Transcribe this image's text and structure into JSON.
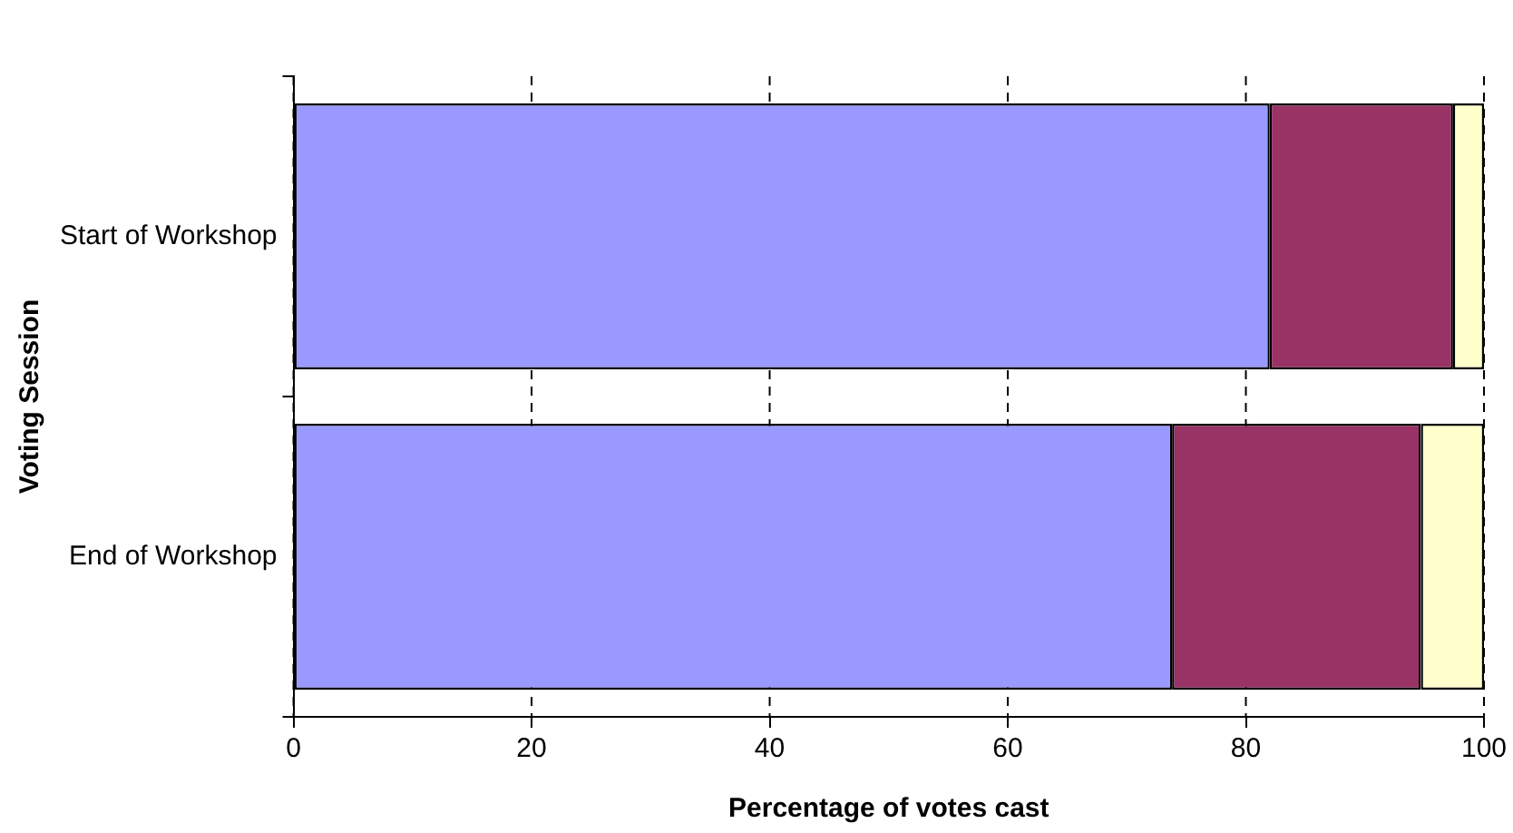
{
  "chart_data": {
    "type": "bar",
    "orientation": "horizontal",
    "stacked": true,
    "xlabel": "Percentage of votes cast",
    "ylabel": "Voting Session",
    "categories": [
      "Start of Workshop",
      "End of Workshop"
    ],
    "series": [
      {
        "color": "#9999ff",
        "values": [
          82,
          73.8
        ]
      },
      {
        "color": "#993366",
        "values": [
          15.4,
          20.9
        ]
      },
      {
        "color": "#ffffcc",
        "values": [
          2.6,
          5.3
        ]
      }
    ],
    "xlim": [
      0,
      100
    ],
    "xticks": [
      0,
      20,
      40,
      60,
      80,
      100
    ],
    "grid": "x",
    "line_style": "dashed",
    "legend": false
  }
}
